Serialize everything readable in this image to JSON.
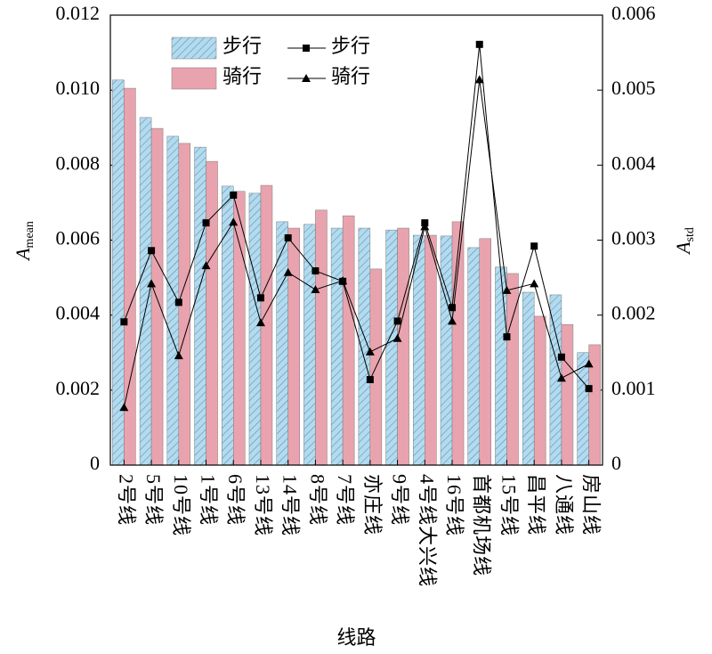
{
  "chart_data": {
    "type": "bar",
    "xlabel": "线路",
    "ylabel": "A",
    "ylabel_sub": "mean",
    "y2label": "A",
    "y2label_sub": "std",
    "categories": [
      "2号线",
      "5号线",
      "10号线",
      "1号线",
      "6号线",
      "13号线",
      "14号线",
      "8号线",
      "7号线",
      "亦庄线",
      "9号线",
      "4号线大兴线",
      "16号线",
      "首都机场线",
      "15号线",
      "昌平线",
      "八通线",
      "房山线"
    ],
    "ylim": [
      0,
      0.012
    ],
    "yticks": [
      0,
      0.002,
      0.004,
      0.006,
      0.008,
      {
        "value": 0.01,
        "label": "0.010"
      },
      0.012
    ],
    "y2lim": [
      0,
      0.006
    ],
    "y2ticks": [
      0,
      0.001,
      0.002,
      0.003,
      0.004,
      0.005,
      0.006
    ],
    "series": [
      {
        "name": "步行",
        "type": "bar",
        "color": "#b3dbef",
        "hatch": true,
        "values": [
          0.01027,
          0.00927,
          0.00877,
          0.00848,
          0.00744,
          0.00725,
          0.00649,
          0.00642,
          0.00632,
          0.00632,
          0.00627,
          0.00613,
          0.00611,
          0.0058,
          0.00528,
          0.00461,
          0.00454,
          0.003
        ]
      },
      {
        "name": "骑行",
        "type": "bar",
        "color": "#e9a3ae",
        "hatch": false,
        "values": [
          0.01005,
          0.00898,
          0.00858,
          0.0081,
          0.0073,
          0.00746,
          0.00632,
          0.0068,
          0.00665,
          0.00523,
          0.00632,
          0.00613,
          0.00649,
          0.00604,
          0.00511,
          0.00397,
          0.00375,
          0.00321
        ]
      },
      {
        "name": "步行",
        "type": "line",
        "axis": "y2",
        "marker": "square",
        "color": "#000000",
        "values": [
          0.00191,
          0.00286,
          0.00217,
          0.00323,
          0.0036,
          0.00223,
          0.00303,
          0.00259,
          0.00245,
          0.00114,
          0.00192,
          0.00323,
          0.0021,
          0.00561,
          0.00171,
          0.00292,
          0.00144,
          0.00102
        ]
      },
      {
        "name": "骑行",
        "type": "line",
        "axis": "y2",
        "marker": "triangle",
        "color": "#000000",
        "values": [
          0.00077,
          0.00242,
          0.00146,
          0.00266,
          0.00324,
          0.0019,
          0.00257,
          0.00234,
          0.00246,
          0.00151,
          0.00169,
          0.00318,
          0.00192,
          0.00514,
          0.00233,
          0.00242,
          0.00116,
          0.00135
        ]
      }
    ]
  }
}
